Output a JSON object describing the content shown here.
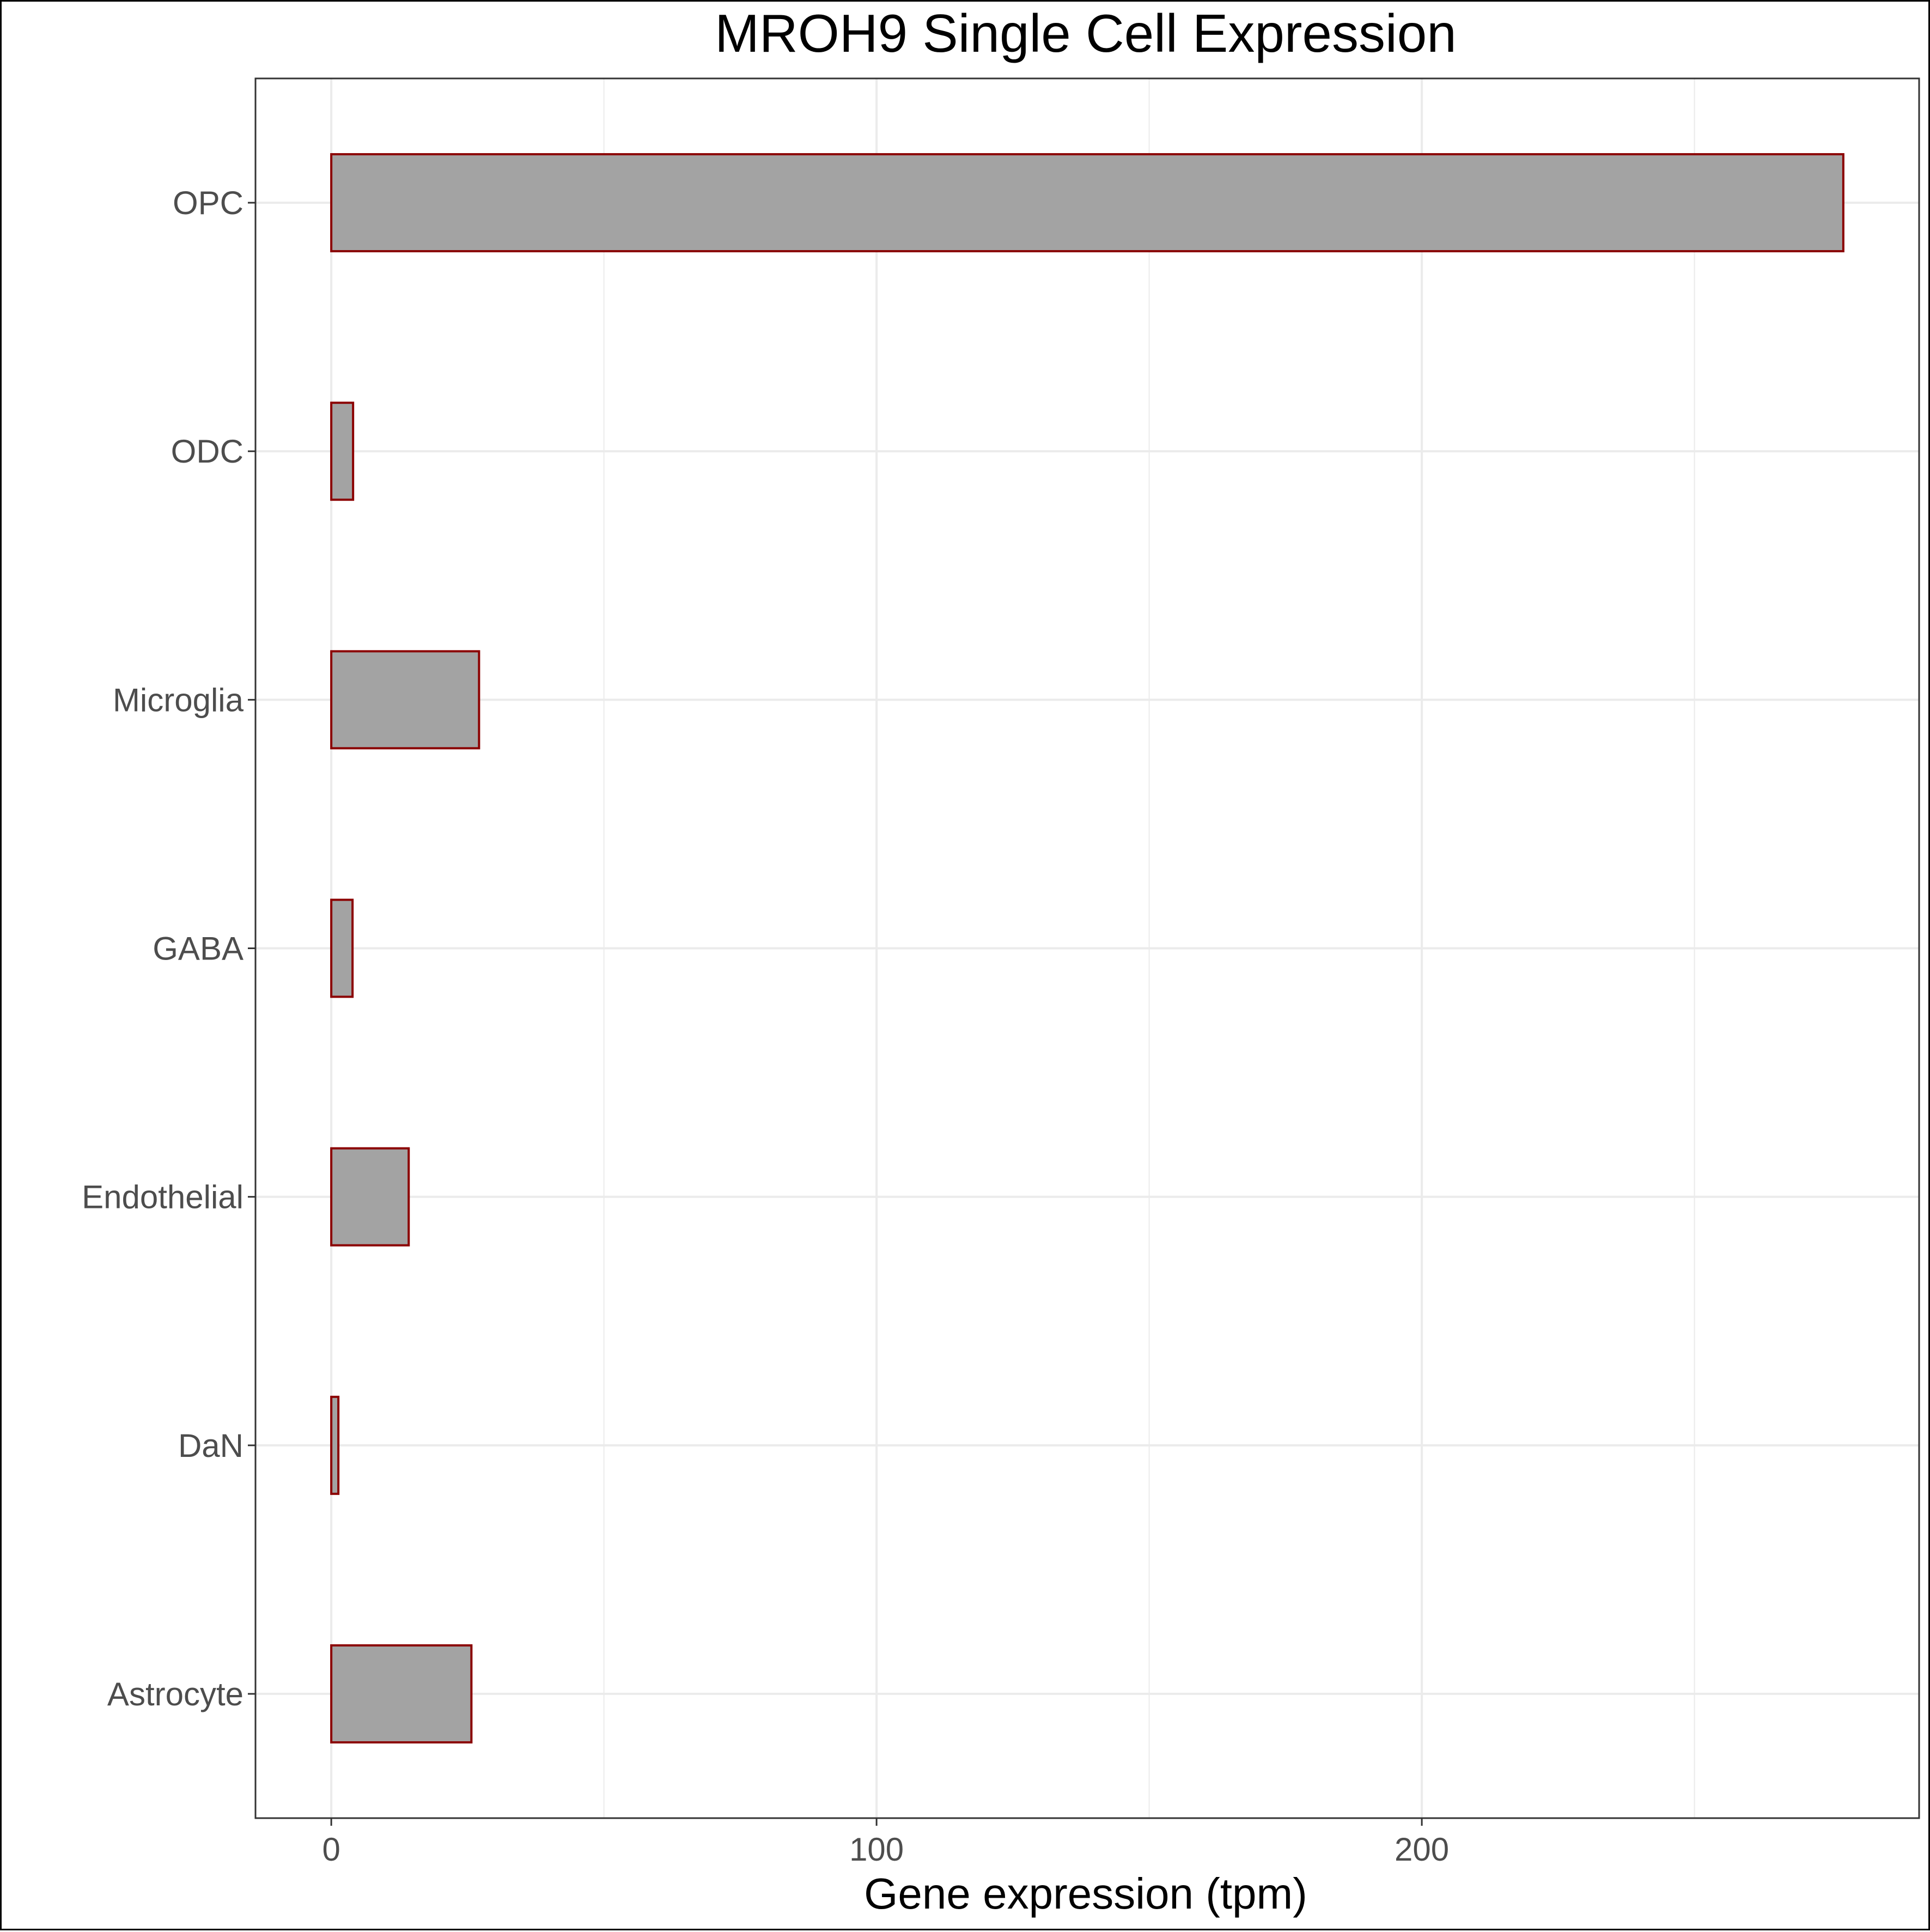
{
  "chart_data": {
    "type": "bar",
    "orientation": "horizontal",
    "title": "MROH9 Single Cell Expression",
    "xlabel": "Gene expression (tpm)",
    "ylabel": "",
    "categories": [
      "Astrocyte",
      "DaN",
      "Endothelial",
      "GABA",
      "Microglia",
      "ODC",
      "OPC"
    ],
    "values": [
      25.7,
      1.3,
      14.2,
      3.9,
      27.1,
      4.0,
      277.3
    ],
    "xlim": [
      -13.9,
      291.2
    ],
    "xticks": [
      0,
      100,
      200
    ],
    "xtick_labels": [
      "0",
      "100",
      "200"
    ],
    "grid": true,
    "legend": "none",
    "colors": {
      "bar_fill": "#a3a3a3",
      "bar_stroke": "#8b0000",
      "grid": "#ebebeb",
      "panel_border": "#333333",
      "tick_text": "#4d4d4d"
    }
  }
}
